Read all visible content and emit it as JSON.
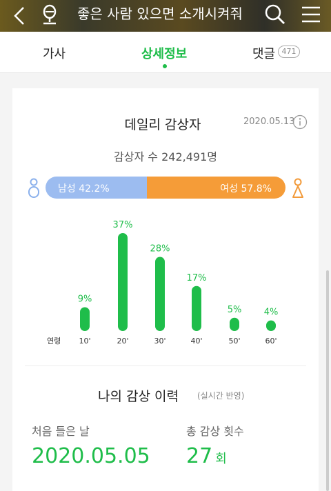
{
  "header": {
    "title": "좋은 사람 있으면 소개시켜줘"
  },
  "tabs": {
    "lyrics": "가사",
    "detail": "상세정보",
    "comments": "댓글",
    "comment_count": "471"
  },
  "daily": {
    "title": "데일리 감상자",
    "date": "2020.05.13",
    "listeners": "감상자 수 242,491명",
    "male": {
      "label": "남성 42.2%",
      "value": 42.2
    },
    "female": {
      "label": "여성 57.8%",
      "value": 57.8
    },
    "colors": {
      "male": "#9cbcf0",
      "female": "#f59c38",
      "accent": "#1fbd4a"
    }
  },
  "chart_data": {
    "type": "bar",
    "xlabel": "연령",
    "categories": [
      "10'",
      "20'",
      "30'",
      "40'",
      "50'",
      "60'"
    ],
    "values": [
      9,
      37,
      28,
      17,
      5,
      4
    ],
    "labels": [
      "9%",
      "37%",
      "28%",
      "17%",
      "5%",
      "4%"
    ],
    "ylim": [
      0,
      40
    ]
  },
  "history": {
    "title": "나의 감상 이력",
    "subtitle": "(실시간 반영)",
    "first_label": "처음 들은 날",
    "first_value": "2020.05.05",
    "total_label": "총 감상 횟수",
    "total_value": "27",
    "total_unit": "회"
  }
}
